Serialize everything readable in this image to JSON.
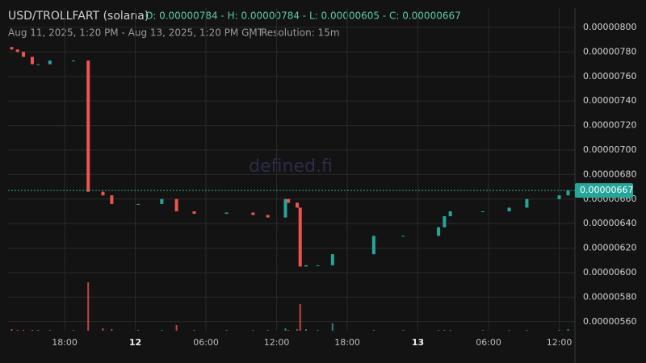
{
  "chart_data": {
    "type": "candlestick",
    "title": "USD/TROLLFART (solana)",
    "ohlc_summary": "O: 0.00000784 - H: 0.00000784 - L: 0.00000605 - C: 0.00000667",
    "subtitle": "Aug 11, 2025, 1:20 PM - Aug 13, 2025, 1:20 PM GMT",
    "separator": "|",
    "resolution": "Resolution: 15m",
    "watermark": "defined.fi",
    "up_color": "#26a69a",
    "down_color": "#ef5350",
    "x": [
      "2025-08-11T13:30Z",
      "2025-08-11T14:00Z",
      "2025-08-11T14:30Z",
      "2025-08-11T15:15Z",
      "2025-08-11T15:45Z",
      "2025-08-11T16:45Z",
      "2025-08-11T18:45Z",
      "2025-08-11T20:00Z",
      "2025-08-11T21:15Z",
      "2025-08-11T22:00Z",
      "2025-08-12T00:15Z",
      "2025-08-12T02:15Z",
      "2025-08-12T03:30Z",
      "2025-08-12T05:00Z",
      "2025-08-12T07:45Z",
      "2025-08-12T10:00Z",
      "2025-08-12T11:15Z",
      "2025-08-12T12:45Z",
      "2025-08-12T13:00Z",
      "2025-08-12T13:45Z",
      "2025-08-12T14:00Z",
      "2025-08-12T14:30Z",
      "2025-08-12T15:30Z",
      "2025-08-12T16:45Z",
      "2025-08-12T20:15Z",
      "2025-08-12T22:45Z",
      "2025-08-13T01:45Z",
      "2025-08-13T02:15Z",
      "2025-08-13T02:45Z",
      "2025-08-13T05:30Z",
      "2025-08-13T07:45Z",
      "2025-08-13T09:15Z",
      "2025-08-13T12:00Z",
      "2025-08-13T12:45Z"
    ],
    "open": [
      7.84e-06,
      7.82e-06,
      7.8e-06,
      7.76e-06,
      7.7e-06,
      7.7e-06,
      7.73e-06,
      7.73e-06,
      6.66e-06,
      6.63e-06,
      6.56e-06,
      6.56e-06,
      6.6e-06,
      6.5e-06,
      6.48e-06,
      6.49e-06,
      6.47e-06,
      6.45e-06,
      6.6e-06,
      6.57e-06,
      6.53e-06,
      6.05e-06,
      6.06e-06,
      6.06e-06,
      6.15e-06,
      6.3e-06,
      6.3e-06,
      6.37e-06,
      6.46e-06,
      6.5e-06,
      6.5e-06,
      6.53e-06,
      6.6e-06,
      6.63e-06
    ],
    "high": [
      7.84e-06,
      7.82e-06,
      7.8e-06,
      7.76e-06,
      7.7e-06,
      7.73e-06,
      7.73e-06,
      7.73e-06,
      6.66e-06,
      6.63e-06,
      6.56e-06,
      6.6e-06,
      6.6e-06,
      6.5e-06,
      6.49e-06,
      6.49e-06,
      6.47e-06,
      6.6e-06,
      6.6e-06,
      6.57e-06,
      6.53e-06,
      6.06e-06,
      6.06e-06,
      6.15e-06,
      6.3e-06,
      6.3e-06,
      6.37e-06,
      6.46e-06,
      6.5e-06,
      6.5e-06,
      6.53e-06,
      6.6e-06,
      6.63e-06,
      6.67e-06
    ],
    "low": [
      7.82e-06,
      7.8e-06,
      7.76e-06,
      7.7e-06,
      7.7e-06,
      7.7e-06,
      7.73e-06,
      6.66e-06,
      6.63e-06,
      6.56e-06,
      6.56e-06,
      6.56e-06,
      6.5e-06,
      6.48e-06,
      6.48e-06,
      6.47e-06,
      6.45e-06,
      6.45e-06,
      6.57e-06,
      6.53e-06,
      6.05e-06,
      6.05e-06,
      6.06e-06,
      6.06e-06,
      6.15e-06,
      6.3e-06,
      6.3e-06,
      6.37e-06,
      6.46e-06,
      6.5e-06,
      6.5e-06,
      6.53e-06,
      6.6e-06,
      6.63e-06
    ],
    "close": [
      7.82e-06,
      7.8e-06,
      7.76e-06,
      7.7e-06,
      7.7e-06,
      7.73e-06,
      7.73e-06,
      6.66e-06,
      6.63e-06,
      6.56e-06,
      6.56e-06,
      6.6e-06,
      6.5e-06,
      6.48e-06,
      6.49e-06,
      6.47e-06,
      6.45e-06,
      6.6e-06,
      6.57e-06,
      6.53e-06,
      6.05e-06,
      6.06e-06,
      6.06e-06,
      6.15e-06,
      6.3e-06,
      6.3e-06,
      6.37e-06,
      6.46e-06,
      6.5e-06,
      6.5e-06,
      6.53e-06,
      6.6e-06,
      6.63e-06,
      6.67e-06
    ],
    "volume": [
      2,
      1,
      1,
      1,
      1,
      1,
      1,
      60,
      3,
      2,
      1,
      1,
      7,
      1,
      1,
      1,
      1,
      3,
      1,
      2,
      33,
      2,
      1,
      9,
      1,
      1,
      1,
      1,
      1,
      1,
      1,
      1,
      1,
      2
    ],
    "xlim": [
      "2025-08-11T13:20Z",
      "2025-08-13T13:20Z"
    ],
    "xticks": [
      {
        "value": "2025-08-11T18:00Z",
        "label": "18:00"
      },
      {
        "value": "2025-08-12T00:00Z",
        "label": "12"
      },
      {
        "value": "2025-08-12T06:00Z",
        "label": "06:00"
      },
      {
        "value": "2025-08-12T12:00Z",
        "label": "12:00"
      },
      {
        "value": "2025-08-12T18:00Z",
        "label": "18:00"
      },
      {
        "value": "2025-08-13T00:00Z",
        "label": "13"
      },
      {
        "value": "2025-08-13T06:00Z",
        "label": "06:00"
      },
      {
        "value": "2025-08-13T12:00Z",
        "label": "12:00"
      }
    ],
    "ylim": [
      5.526e-06,
      8.158e-06
    ],
    "yticks": [
      {
        "value": 8e-06,
        "label": "0.00000800"
      },
      {
        "value": 7.8e-06,
        "label": "0.00000780"
      },
      {
        "value": 7.6e-06,
        "label": "0.00000760"
      },
      {
        "value": 7.4e-06,
        "label": "0.00000740"
      },
      {
        "value": 7.2e-06,
        "label": "0.00000720"
      },
      {
        "value": 7e-06,
        "label": "0.00000700"
      },
      {
        "value": 6.8e-06,
        "label": "0.00000680"
      },
      {
        "value": 6.6e-06,
        "label": "0.00000660"
      },
      {
        "value": 6.4e-06,
        "label": "0.00000640"
      },
      {
        "value": 6.2e-06,
        "label": "0.00000620"
      },
      {
        "value": 6e-06,
        "label": "0.00000600"
      },
      {
        "value": 5.8e-06,
        "label": "0.00000580"
      },
      {
        "value": 5.6e-06,
        "label": "0.00000560"
      }
    ],
    "price_line": {
      "value": 6.67e-06,
      "label": "0.00000667"
    },
    "grid": true
  }
}
